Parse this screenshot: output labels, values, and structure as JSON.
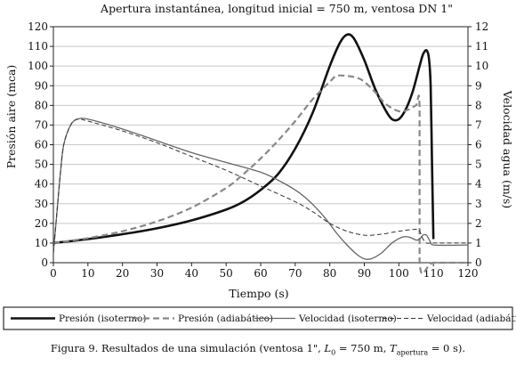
{
  "caption": {
    "prefix": "Figura 9. Resultados de una simulación (ventosa 1\", ",
    "L": "L",
    "L_sub": "0",
    "mid": " = 750 m, ",
    "T": "T",
    "T_sub": "apertura",
    "suffix": " = 0 s)."
  },
  "chart_data": {
    "type": "line",
    "title": "Apertura instantánea, longitud inicial = 750 m, ventosa DN 1\"",
    "xlabel": "Tiempo (s)",
    "ylabel_left": "Presión aire (mca)",
    "ylabel_right": "Velocidad agua (m/s)",
    "xlim": [
      0,
      120
    ],
    "ylim_left": [
      0,
      120
    ],
    "ylim_right": [
      0,
      12
    ],
    "xticks": [
      0,
      10,
      20,
      30,
      40,
      50,
      60,
      70,
      80,
      90,
      100,
      110,
      120
    ],
    "yticks_left": [
      0,
      10,
      20,
      30,
      40,
      50,
      60,
      70,
      80,
      90,
      100,
      110,
      120
    ],
    "yticks_right": [
      0,
      1,
      2,
      3,
      4,
      5,
      6,
      7,
      8,
      9,
      10,
      11,
      12
    ],
    "grid": "horizontal",
    "legend_position": "bottom",
    "series": [
      {
        "name": "Presión (isotermo)",
        "axis": "left",
        "color": "#111111",
        "dash": "solid",
        "width": 2.6,
        "x": [
          0,
          10,
          20,
          30,
          40,
          50,
          55,
          60,
          65,
          70,
          75,
          80,
          83,
          85,
          87,
          90,
          93,
          96,
          98,
          100,
          102,
          104,
          106,
          107,
          108,
          108.7,
          109.2,
          109.6,
          110
        ],
        "y": [
          10,
          12,
          14.5,
          17.5,
          21.5,
          27,
          31,
          37,
          45,
          58,
          76,
          100,
          112,
          116,
          114,
          103,
          89,
          78,
          73,
          73,
          78,
          87,
          100,
          106,
          108,
          104,
          90,
          50,
          12
        ]
      },
      {
        "name": "Presión (adiabático)",
        "axis": "left",
        "color": "#888888",
        "dash": "dashed",
        "width": 2.2,
        "x": [
          0,
          10,
          20,
          30,
          40,
          50,
          55,
          60,
          65,
          70,
          75,
          80,
          82,
          85,
          88,
          90,
          93,
          96,
          100,
          103,
          105,
          106,
          106,
          110,
          120
        ],
        "y": [
          10,
          12.5,
          16,
          21,
          28,
          38,
          45,
          53,
          62,
          72,
          83,
          92,
          95,
          95,
          94,
          92,
          87,
          81,
          77,
          78,
          80,
          79,
          0,
          0,
          0
        ]
      },
      {
        "name": "Velocidad (isotermo)",
        "axis": "right",
        "color": "#666666",
        "dash": "solid",
        "width": 1.3,
        "x": [
          0,
          1,
          2,
          3,
          5,
          7,
          10,
          20,
          30,
          40,
          50,
          60,
          65,
          70,
          73,
          76,
          79,
          82,
          85,
          88,
          90,
          92,
          95,
          98,
          101,
          103,
          105,
          106,
          107,
          108,
          109,
          110,
          120
        ],
        "y": [
          0.5,
          2.5,
          4.5,
          6,
          7,
          7.3,
          7.3,
          6.8,
          6.2,
          5.6,
          5.1,
          4.6,
          4.2,
          3.7,
          3.3,
          2.8,
          2.2,
          1.5,
          0.9,
          0.4,
          0.2,
          0.2,
          0.5,
          1,
          1.3,
          1.3,
          1.15,
          1.2,
          1.4,
          1.4,
          1.1,
          0.9,
          0.9
        ]
      },
      {
        "name": "Velocidad (adiabático)",
        "axis": "right",
        "color": "#333333",
        "dash": "dashed",
        "width": 1.0,
        "x": [
          0,
          1,
          2,
          3,
          5,
          7,
          10,
          20,
          30,
          40,
          50,
          60,
          70,
          75,
          80,
          85,
          90,
          95,
          100,
          105,
          106,
          107,
          108,
          109,
          110,
          120
        ],
        "y": [
          0.5,
          2.5,
          4.5,
          6,
          7,
          7.3,
          7.2,
          6.7,
          6.1,
          5.4,
          4.7,
          3.9,
          3.1,
          2.6,
          2.0,
          1.6,
          1.4,
          1.45,
          1.6,
          1.7,
          1.6,
          1.2,
          1.0,
          1.0,
          1.0,
          1.0
        ]
      }
    ]
  }
}
